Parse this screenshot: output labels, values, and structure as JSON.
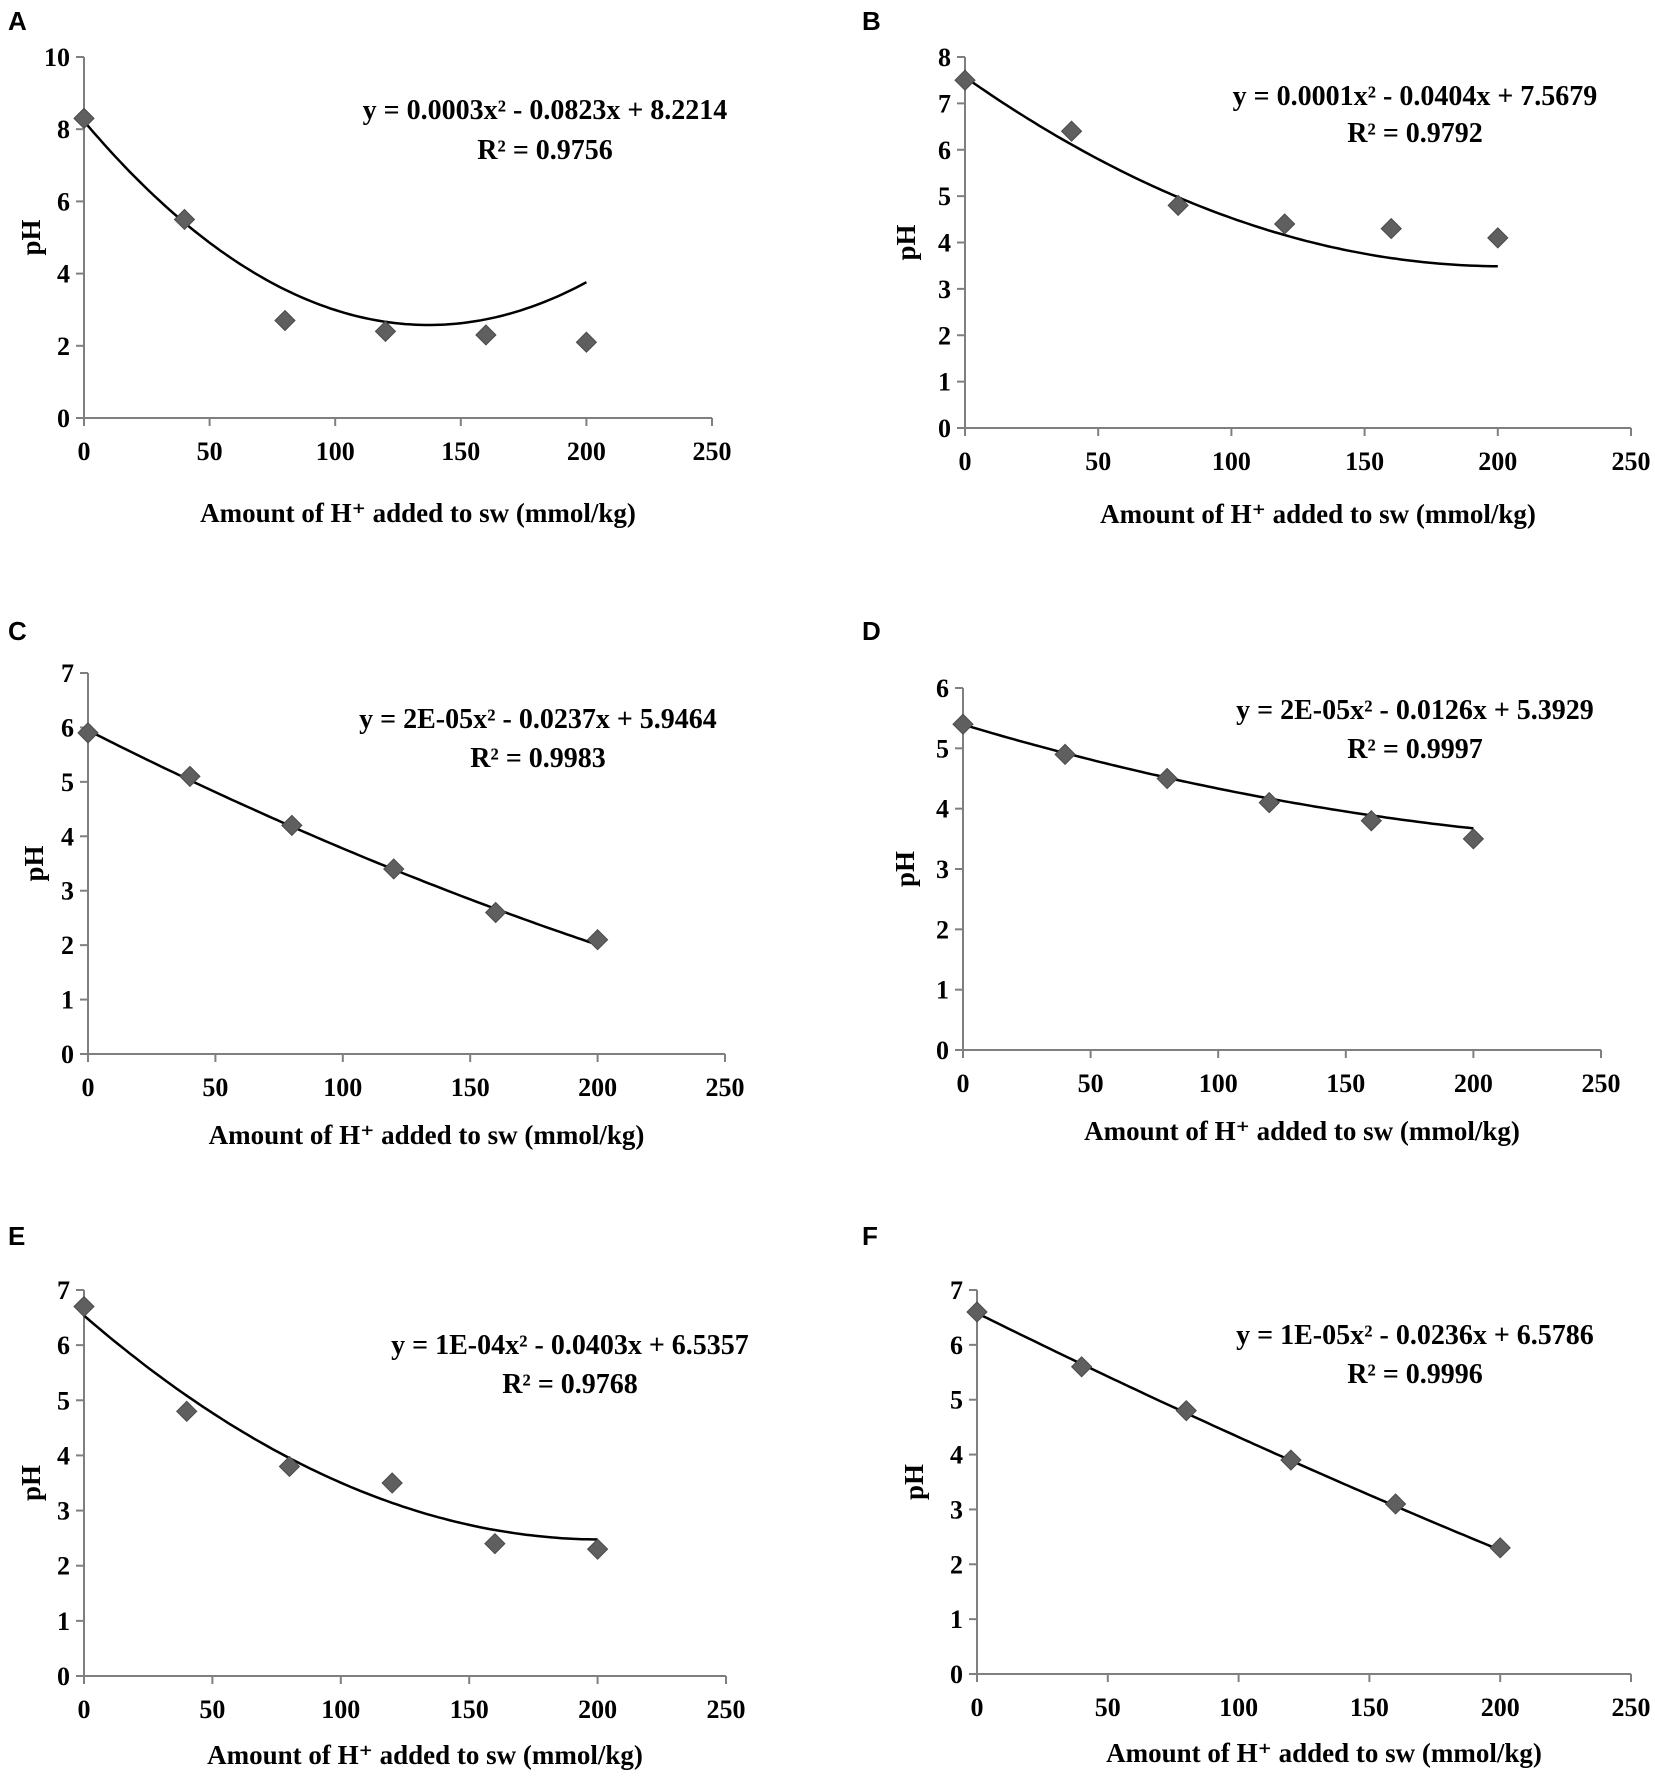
{
  "colors": {
    "marker": "#5f5f5f",
    "trendline": "#000000",
    "axis": "#7f7f7f"
  },
  "chart_data": [
    {
      "panel": "A",
      "type": "scatter",
      "x": [
        0,
        40,
        80,
        120,
        160,
        200
      ],
      "y": [
        8.3,
        5.5,
        2.7,
        2.4,
        2.3,
        2.1
      ],
      "trend": {
        "a": 0.0003,
        "b": -0.0823,
        "c": 8.2214
      },
      "equation": "y = 0.0003x² - 0.0823x + 8.2214",
      "r2": "R² = 0.9756",
      "xlabel": "Amount of  H⁺ added to sw (mmol/kg)",
      "ylabel": "pH",
      "xlim": [
        0,
        250
      ],
      "ylim": [
        0,
        10
      ],
      "xticks": [
        "0",
        "50",
        "100",
        "150",
        "200",
        "250"
      ],
      "yticks": [
        "0",
        "2",
        "4",
        "6",
        "8",
        "10"
      ]
    },
    {
      "panel": "B",
      "type": "scatter",
      "x": [
        0,
        40,
        80,
        120,
        160,
        200
      ],
      "y": [
        7.5,
        6.4,
        4.8,
        4.4,
        4.3,
        4.1
      ],
      "trend": {
        "a": 0.0001,
        "b": -0.0404,
        "c": 7.5679
      },
      "equation": "y = 0.0001x² - 0.0404x + 7.5679",
      "r2": "R² = 0.9792",
      "xlabel": "Amount of  H⁺ added to sw (mmol/kg)",
      "ylabel": "pH",
      "xlim": [
        0,
        250
      ],
      "ylim": [
        0,
        8
      ],
      "xticks": [
        "0",
        "50",
        "100",
        "150",
        "200",
        "250"
      ],
      "yticks": [
        "0",
        "1",
        "2",
        "3",
        "4",
        "5",
        "6",
        "7",
        "8"
      ]
    },
    {
      "panel": "C",
      "type": "scatter",
      "x": [
        0,
        40,
        80,
        120,
        160,
        200
      ],
      "y": [
        5.9,
        5.1,
        4.2,
        3.4,
        2.6,
        2.1
      ],
      "trend": {
        "a": 2e-05,
        "b": -0.0237,
        "c": 5.9464
      },
      "equation": "y = 2E-05x² - 0.0237x + 5.9464",
      "r2": "R² = 0.9983",
      "xlabel": "Amount of  H⁺ added to sw (mmol/kg)",
      "ylabel": "pH",
      "xlim": [
        0,
        250
      ],
      "ylim": [
        0,
        7
      ],
      "xticks": [
        "0",
        "50",
        "100",
        "150",
        "200",
        "250"
      ],
      "yticks": [
        "0",
        "1",
        "2",
        "3",
        "4",
        "5",
        "6",
        "7"
      ]
    },
    {
      "panel": "D",
      "type": "scatter",
      "x": [
        0,
        40,
        80,
        120,
        160,
        200
      ],
      "y": [
        5.4,
        4.9,
        4.5,
        4.1,
        3.8,
        3.5
      ],
      "trend": {
        "a": 2e-05,
        "b": -0.0126,
        "c": 5.3929
      },
      "equation": "y = 2E-05x² - 0.0126x + 5.3929",
      "r2": "R² = 0.9997",
      "xlabel": "Amount of  H⁺ added to sw (mmol/kg)",
      "ylabel": "pH",
      "xlim": [
        0,
        250
      ],
      "ylim": [
        0,
        6
      ],
      "xticks": [
        "0",
        "50",
        "100",
        "150",
        "200",
        "250"
      ],
      "yticks": [
        "0",
        "1",
        "2",
        "3",
        "4",
        "5",
        "6"
      ]
    },
    {
      "panel": "E",
      "type": "scatter",
      "x": [
        0,
        40,
        80,
        120,
        160,
        200
      ],
      "y": [
        6.7,
        4.8,
        3.8,
        3.5,
        2.4,
        2.3
      ],
      "trend": {
        "a": 0.0001,
        "b": -0.0403,
        "c": 6.5357
      },
      "equation": "y = 1E-04x² - 0.0403x + 6.5357",
      "r2": "R² = 0.9768",
      "xlabel": "Amount of  H⁺ added to sw (mmol/kg)",
      "ylabel": "pH",
      "xlim": [
        0,
        250
      ],
      "ylim": [
        0,
        7
      ],
      "xticks": [
        "0",
        "50",
        "100",
        "150",
        "200",
        "250"
      ],
      "yticks": [
        "0",
        "1",
        "2",
        "3",
        "4",
        "5",
        "6",
        "7"
      ]
    },
    {
      "panel": "F",
      "type": "scatter",
      "x": [
        0,
        40,
        80,
        120,
        160,
        200
      ],
      "y": [
        6.6,
        5.6,
        4.8,
        3.9,
        3.1,
        2.3
      ],
      "trend": {
        "a": 1e-05,
        "b": -0.0236,
        "c": 6.5786
      },
      "equation": "y = 1E-05x² - 0.0236x + 6.5786",
      "r2": "R² = 0.9996",
      "xlabel": "Amount of  H⁺ added to sw (mmol/kg)",
      "ylabel": "pH",
      "xlim": [
        0,
        250
      ],
      "ylim": [
        0,
        7
      ],
      "xticks": [
        "0",
        "50",
        "100",
        "150",
        "200",
        "250"
      ],
      "yticks": [
        "0",
        "1",
        "2",
        "3",
        "4",
        "5",
        "6",
        "7"
      ]
    }
  ]
}
